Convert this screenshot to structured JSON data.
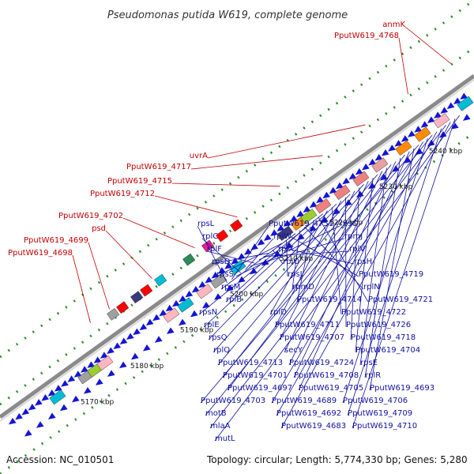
{
  "title": "Pseudomonas putida W619, complete genome",
  "footer": {
    "accession": "Accession: NC_010501",
    "summary": "Topology: circular; Length: 5,774,330 bp; Genes: 5,280"
  },
  "kbp_ticks": [
    "5170 kbp",
    "5180 kbp",
    "5190 kbp",
    "5200 kbp",
    "5210 kbp",
    "5220 kbp",
    "5230 kbp",
    "5240 kbp"
  ],
  "labels_red": [
    "anmK",
    "PputW619_4768",
    "uvrA",
    "PputW619_4717",
    "PputW619_4715",
    "PputW619_4712",
    "PputW619_4702",
    "psd",
    "PputW619_4699",
    "PputW619_4698"
  ],
  "labels_blue": [
    "rpsL",
    "PputW619_4751",
    "rpsC",
    "rplC",
    "rplW",
    "rpmJ",
    "rplF",
    "rplX",
    "rplV",
    "rpsD",
    "rplO",
    "rpsH",
    "rpsS",
    "rpsJ",
    "PputW619_4719",
    "rpsM",
    "rpmD",
    "rplN",
    "rplB",
    "PputW619_4714",
    "PputW619_4721",
    "rpsN",
    "rplD",
    "PputW619_4722",
    "rplE",
    "PputW619_4711",
    "PputW619_4726",
    "rpsQ",
    "PputW619_4707",
    "PputW619_4718",
    "rplQ",
    "secY",
    "PputW619_4704",
    "PputW619_4713",
    "PputW619_4724",
    "rpsE",
    "PputW619_4701",
    "PputW619_4708",
    "rplR",
    "PputW619_4697",
    "PputW619_4705",
    "PputW619_4693",
    "PputW619_4703",
    "PputW619_4689",
    "PputW619_4706",
    "motB",
    "PputW619_4692",
    "PputW619_4709",
    "mlaA",
    "PputW619_4683",
    "PputW619_4710",
    "mutL"
  ]
}
